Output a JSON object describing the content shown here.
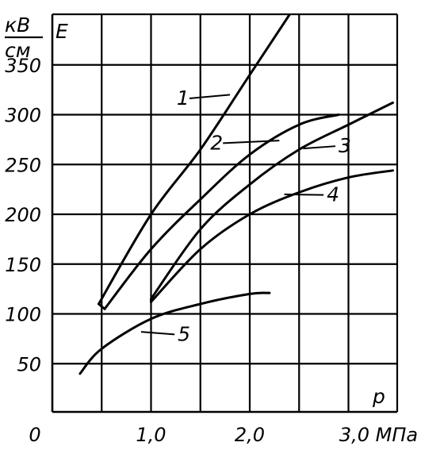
{
  "chart_data": {
    "type": "line",
    "ylabel_unit_top": "кВ",
    "ylabel_unit_bottom": "см",
    "ylabel": "E",
    "xlabel": "p",
    "xlim": [
      0,
      3.5
    ],
    "ylim": [
      0,
      400
    ],
    "grid": true,
    "xticks": [
      {
        "value": 0,
        "label": "0"
      },
      {
        "value": 1.0,
        "label": "1,0"
      },
      {
        "value": 2.0,
        "label": "2,0"
      },
      {
        "value": 3.0,
        "label": "3,0 МПа"
      }
    ],
    "yticks": [
      {
        "value": 50,
        "label": "50"
      },
      {
        "value": 100,
        "label": "100"
      },
      {
        "value": 150,
        "label": "150"
      },
      {
        "value": 200,
        "label": "200"
      },
      {
        "value": 250,
        "label": "250"
      },
      {
        "value": 300,
        "label": "300"
      },
      {
        "value": 350,
        "label": "350"
      }
    ],
    "series": [
      {
        "name": "1",
        "x": [
          0.47,
          1.0,
          1.5,
          2.0,
          2.4
        ],
        "y": [
          110,
          200,
          265,
          340,
          400
        ]
      },
      {
        "name": "2",
        "x": [
          0.53,
          1.0,
          1.5,
          2.0,
          2.5,
          2.9
        ],
        "y": [
          105,
          165,
          215,
          260,
          290,
          300
        ]
      },
      {
        "name": "3",
        "x": [
          1.0,
          1.5,
          2.0,
          2.5,
          3.0,
          3.45
        ],
        "y": [
          115,
          185,
          230,
          265,
          290,
          312
        ]
      },
      {
        "name": "4",
        "x": [
          1.0,
          1.5,
          2.0,
          2.5,
          3.0,
          3.45
        ],
        "y": [
          112,
          165,
          200,
          222,
          237,
          244
        ]
      },
      {
        "name": "5",
        "x": [
          0.28,
          0.5,
          1.0,
          1.5,
          2.0,
          2.2
        ],
        "y": [
          40,
          65,
          95,
          110,
          120,
          121
        ]
      }
    ],
    "curve_labels": [
      {
        "text": "1",
        "x": 1.26,
        "y": 310,
        "tip_x": 1.8,
        "tip_y": 320
      },
      {
        "text": "2",
        "x": 1.6,
        "y": 265,
        "tip_x": 2.3,
        "tip_y": 274
      },
      {
        "text": "3",
        "x": 2.9,
        "y": 262,
        "tip_x": 2.54,
        "tip_y": 266
      },
      {
        "text": "4",
        "x": 2.78,
        "y": 213,
        "tip_x": 2.35,
        "tip_y": 220
      },
      {
        "text": "5",
        "x": 1.27,
        "y": 73,
        "tip_x": 0.9,
        "tip_y": 82
      }
    ]
  }
}
